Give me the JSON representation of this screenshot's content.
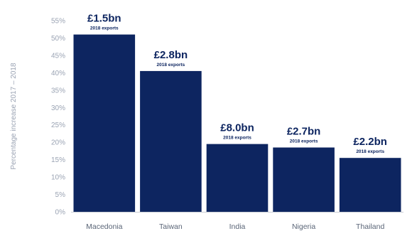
{
  "chart_data": {
    "type": "bar",
    "categories": [
      "Macedonia",
      "Taiwan",
      "India",
      "Nigeria",
      "Thailand"
    ],
    "values": [
      51,
      40.5,
      19.5,
      18.5,
      15.5
    ],
    "data_labels": [
      "£1.5bn",
      "£2.8bn",
      "£8.0bn",
      "£2.7bn",
      "£2.2bn"
    ],
    "data_sublabels": [
      "2018 exports",
      "2018 exports",
      "2018 exports",
      "2018 exports",
      "2018 exports"
    ],
    "ylabel": "Percentage increase 2017 – 2018",
    "ylim": [
      0,
      55
    ],
    "yticks": [
      0,
      5,
      10,
      15,
      20,
      25,
      30,
      35,
      40,
      45,
      50,
      55
    ],
    "ytick_labels": [
      "0%",
      "5%",
      "10%",
      "15%",
      "20%",
      "25%",
      "30%",
      "35%",
      "40%",
      "45%",
      "50%",
      "55%"
    ],
    "grid": false,
    "legend": "none",
    "colors": {
      "bar": "#0d2560",
      "label_text": "#0d2560",
      "axis_text": "#9aa3b3",
      "category_text": "#5a6577",
      "axis_line": "#c8ccd4"
    }
  }
}
